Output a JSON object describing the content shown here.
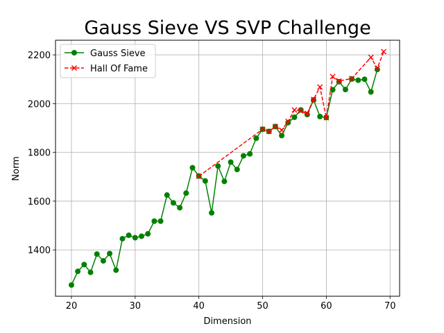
{
  "chart_data": {
    "type": "line",
    "title": "Gauss Sieve VS SVP Challenge",
    "xlabel": "Dimension",
    "ylabel": "Norm",
    "xlim": [
      17.5,
      71.5
    ],
    "ylim": [
      1210,
      2260
    ],
    "xticks": [
      20,
      30,
      40,
      50,
      60,
      70
    ],
    "yticks": [
      1400,
      1600,
      1800,
      2000,
      2200
    ],
    "grid": true,
    "legend_position": "top-left",
    "series": [
      {
        "name": "Gauss Sieve",
        "color": "#008000",
        "line_style": "solid",
        "marker": "circle",
        "x": [
          20,
          21,
          22,
          23,
          24,
          25,
          26,
          27,
          28,
          29,
          30,
          31,
          32,
          33,
          34,
          35,
          36,
          37,
          38,
          39,
          40,
          41,
          42,
          43,
          44,
          45,
          46,
          47,
          48,
          49,
          50,
          51,
          52,
          53,
          54,
          55,
          56,
          57,
          58,
          59,
          60,
          61,
          62,
          63,
          64,
          65,
          66,
          67,
          68
        ],
        "y": [
          1256,
          1312,
          1340,
          1308,
          1383,
          1355,
          1385,
          1317,
          1446,
          1460,
          1450,
          1456,
          1466,
          1518,
          1518,
          1625,
          1593,
          1573,
          1633,
          1737,
          1703,
          1683,
          1552,
          1744,
          1681,
          1760,
          1730,
          1786,
          1794,
          1858,
          1895,
          1886,
          1906,
          1869,
          1922,
          1944,
          1974,
          1955,
          2015,
          1947,
          1943,
          2057,
          2090,
          2058,
          2101,
          2096,
          2100,
          2048,
          2140
        ]
      },
      {
        "name": "Hall Of Fame",
        "color": "#ff0000",
        "line_style": "dashed",
        "marker": "x",
        "x": [
          40,
          50,
          51,
          52,
          53,
          54,
          55,
          56,
          57,
          58,
          59,
          60,
          61,
          62,
          64,
          67,
          68,
          69
        ],
        "y": [
          1702,
          1895,
          1886,
          1906,
          1891,
          1927,
          1974,
          1970,
          1960,
          2017,
          2068,
          1942,
          2111,
          2093,
          2103,
          2190,
          2145,
          2213
        ]
      }
    ]
  }
}
